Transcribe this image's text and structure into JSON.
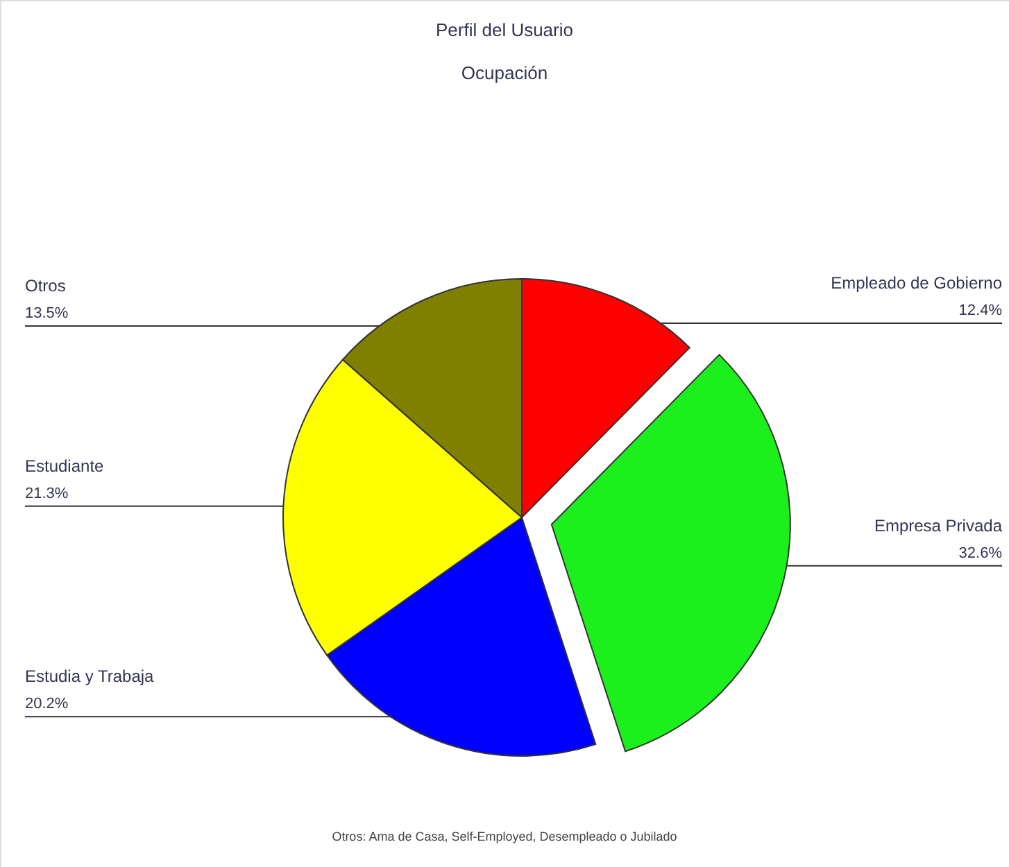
{
  "chart_data": {
    "type": "pie",
    "title": "Perfil del Usuario",
    "subtitle": "Ocupación",
    "categories": [
      "Empleado de Gobierno",
      "Empresa Privada",
      "Estudia y Trabaja",
      "Estudiante",
      "Otros"
    ],
    "values": [
      12.4,
      32.6,
      20.2,
      21.3,
      13.5
    ],
    "value_labels": [
      "12.4%",
      "32.6%",
      "20.2%",
      "21.3%",
      "13.5%"
    ],
    "colors": [
      "#ff0000",
      "#1cf01c",
      "#0000ff",
      "#ffff00",
      "#808000"
    ],
    "annotations": [
      "Otros: Ama de Casa, Self-Employed, Desempleado o Jubilado"
    ]
  }
}
